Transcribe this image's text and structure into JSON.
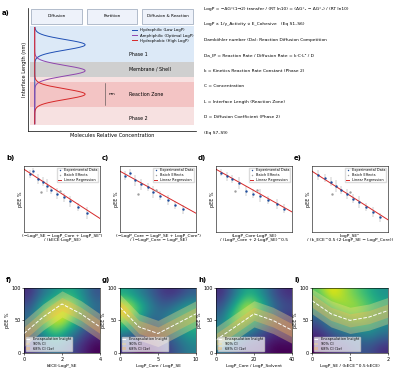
{
  "diagram": {
    "panel": "a)",
    "headers": [
      "Diffusion",
      "Partition",
      "Diffusion & Reaction"
    ],
    "y_label": "Interface Length (nm)",
    "x_label": "Molecules Relative Concentration",
    "regions": [
      "Phase 1",
      "Membrane / Shell",
      "Reaction Zone",
      "Phase 2"
    ],
    "nm_label": "nm",
    "species": [
      {
        "name": "Hydrophilic (Low LogP)",
        "color": "#1f4fb4"
      },
      {
        "name": "Amphiphilic (Optimal LogP)",
        "color": "#8e44ad"
      },
      {
        "name": "Hydrophobic (High LogP)",
        "color": "#d62728"
      }
    ],
    "equations": [
      "LogP = −ΔG°(1→2) transfer / (RT ln10) = (ΔG°₂ − ΔG°₁) / (RT ln10)",
      "LogP ∝ 1/γ_Activity ∝ E_Cohesive   (Eq S1–S6)",
      "Damköhler number (Da): Reaction Diffusion Competition",
      "Da_IP = Reaction Rate / Diffusion Rate = k·C·L² / D",
      "k = Kinetics Reaction Rate Constant (Phase 2)",
      "C = Concentration",
      "L = Interface Length (Reaction Zone)",
      "D = Diffusion Coefficient (Phase 2)",
      "(Eq S7–S9)"
    ]
  },
  "chart_data": [
    {
      "panel": "b)",
      "type": "scatter",
      "x_label": "(−LogP_SE − LogP_Core + LogP_SE²)\n/ (kECE·LogP_SE)",
      "y_label": "pEE %",
      "xlim": [
        0,
        10
      ],
      "ylim": [
        0,
        100
      ],
      "tick_labels": false,
      "legend": "upper right",
      "series": [
        {
          "name": "Experimental Data",
          "type": "scatter",
          "color": "#1f4e9e",
          "marker": "o",
          "x": [
            0.8,
            1.2,
            1.8,
            2.5,
            3.0,
            3.6,
            4.4,
            5.2,
            6.0,
            7.1,
            8.3
          ],
          "values": [
            88,
            92,
            80,
            76,
            70,
            64,
            58,
            52,
            46,
            38,
            28
          ],
          "errors": [
            6,
            5,
            8,
            7,
            10,
            6,
            9,
            7,
            8,
            6,
            9
          ]
        },
        {
          "name": "Batch Effects",
          "type": "scatter",
          "color": "#9e9e9e",
          "marker": "o",
          "x": [
            2.2,
            4.8
          ],
          "values": [
            60,
            62
          ]
        },
        {
          "name": "Linear Regression",
          "type": "line",
          "color": "#d62728",
          "line_style": "solid",
          "x": [
            0,
            10
          ],
          "values": [
            95,
            20
          ]
        }
      ]
    },
    {
      "panel": "c)",
      "type": "scatter",
      "x_label": "(−LogP_Core − LogP_SE + LogP_Core²)\n/ (−LogP_Core − LogP_SE)",
      "y_label": "pEE %",
      "xlim": [
        0,
        8
      ],
      "ylim": [
        0,
        100
      ],
      "tick_labels": false,
      "legend": "upper right",
      "series": [
        {
          "name": "Experimental Data",
          "type": "scatter",
          "color": "#1f4e9e",
          "marker": "o",
          "x": [
            0.5,
            1.0,
            1.6,
            2.2,
            2.9,
            3.5,
            4.2,
            5.0,
            5.8,
            6.6
          ],
          "values": [
            85,
            90,
            78,
            72,
            68,
            60,
            55,
            48,
            40,
            34
          ],
          "errors": [
            7,
            6,
            9,
            8,
            6,
            9,
            7,
            8,
            6,
            7
          ]
        },
        {
          "name": "Batch Effects",
          "type": "scatter",
          "color": "#9e9e9e",
          "marker": "o",
          "x": [
            1.9,
            3.8
          ],
          "values": [
            58,
            64
          ]
        },
        {
          "name": "Linear Regression",
          "type": "line",
          "color": "#d62728",
          "line_style": "solid",
          "x": [
            0,
            8
          ],
          "values": [
            92,
            28
          ]
        }
      ]
    },
    {
      "panel": "d)",
      "type": "scatter",
      "x_label": "(LogP_Core·LogP_SE)\n/ (LogP_Core + 2·LogP_SE)^0.5",
      "y_label": "pEE %",
      "xlim": [
        0,
        6
      ],
      "ylim": [
        0,
        100
      ],
      "tick_labels": false,
      "legend": "upper right",
      "series": [
        {
          "name": "Experimental Data",
          "type": "scatter",
          "color": "#1f4e9e",
          "marker": "o",
          "x": [
            0.4,
            0.9,
            1.3,
            1.8,
            2.4,
            2.9,
            3.5,
            4.1,
            4.8,
            5.4
          ],
          "values": [
            90,
            84,
            80,
            74,
            62,
            58,
            55,
            48,
            42,
            35
          ],
          "errors": [
            5,
            7,
            6,
            9,
            8,
            7,
            10,
            6,
            8,
            7
          ]
        },
        {
          "name": "Batch Effects",
          "type": "scatter",
          "color": "#9e9e9e",
          "marker": "o",
          "x": [
            1.5,
            3.2
          ],
          "values": [
            62,
            64
          ]
        },
        {
          "name": "Linear Regression",
          "type": "line",
          "color": "#d62728",
          "line_style": "solid",
          "x": [
            0,
            6
          ],
          "values": [
            95,
            30
          ]
        }
      ]
    },
    {
      "panel": "e)",
      "type": "scatter",
      "x_label": "LogP_SE²\n/ (k_ECE^0.5·(2·LogP_SE − LogP_Core))",
      "y_label": "pEE %",
      "xlim": [
        0,
        12
      ],
      "ylim": [
        0,
        100
      ],
      "tick_labels": false,
      "legend": "upper right",
      "series": [
        {
          "name": "Experimental Data",
          "type": "scatter",
          "color": "#1f4e9e",
          "marker": "o",
          "x": [
            1,
            2,
            3,
            3.8,
            4.6,
            5.5,
            6.5,
            7.4,
            8.5,
            9.6,
            10.8
          ],
          "values": [
            86,
            82,
            76,
            70,
            63,
            57,
            50,
            45,
            38,
            30,
            22
          ],
          "errors": [
            8,
            6,
            7,
            9,
            6,
            8,
            7,
            9,
            6,
            8,
            7
          ]
        },
        {
          "name": "Batch Effects",
          "type": "scatter",
          "color": "#9e9e9e",
          "marker": "o",
          "x": [
            3.2,
            6.0
          ],
          "values": [
            58,
            60
          ]
        },
        {
          "name": "Linear Regression",
          "type": "line",
          "color": "#d62728",
          "line_style": "solid",
          "x": [
            0,
            12
          ],
          "values": [
            92,
            18
          ]
        }
      ]
    },
    {
      "panel": "f)",
      "type": "heatmap",
      "x_label": "kECE·LogP_SE",
      "y_label": "pEE %",
      "xlim": [
        0,
        4
      ],
      "ylim": [
        0,
        100
      ],
      "xticks": [
        0,
        2,
        4
      ],
      "yticks": [
        0,
        50,
        100
      ],
      "legend": "lower left",
      "cells": [
        [
          0.2,
          0.3,
          0.4,
          0.3,
          0.2,
          0.1
        ],
        [
          0.3,
          0.5,
          0.7,
          0.5,
          0.3,
          0.2
        ],
        [
          0.4,
          0.7,
          0.9,
          0.8,
          0.5,
          0.3
        ],
        [
          0.3,
          0.6,
          0.8,
          0.9,
          0.6,
          0.4
        ],
        [
          0.2,
          0.4,
          0.5,
          0.6,
          0.5,
          0.3
        ]
      ],
      "series": [
        {
          "name": "Encapsulation Insight",
          "type": "line",
          "color": "#ffffff",
          "line_style": "dashed",
          "x": [
            0,
            1,
            2,
            3,
            4
          ],
          "values": [
            30,
            55,
            75,
            60,
            40
          ]
        },
        {
          "name": "90% CI",
          "type": "area",
          "color": "#ffe082",
          "x": [
            0,
            1,
            2,
            3,
            4
          ],
          "lower": [
            10,
            35,
            55,
            40,
            20
          ],
          "upper": [
            50,
            75,
            95,
            80,
            60
          ]
        },
        {
          "name": "68% CI (1σ)",
          "type": "area",
          "color": "#ffb74d",
          "x": [
            0,
            1,
            2,
            3,
            4
          ],
          "lower": [
            20,
            45,
            65,
            50,
            30
          ],
          "upper": [
            40,
            65,
            85,
            70,
            50
          ]
        }
      ]
    },
    {
      "panel": "g)",
      "type": "heatmap",
      "x_label": "LogP_Core / LogP_SE",
      "y_label": "pEE %",
      "xlim": [
        0,
        10
      ],
      "ylim": [
        0,
        100
      ],
      "xticks": [
        0,
        5,
        10
      ],
      "yticks": [
        0,
        50,
        100
      ],
      "legend": "lower left",
      "cells": [
        [
          0.3,
          0.2,
          0.2,
          0.3,
          0.4,
          0.5
        ],
        [
          0.5,
          0.4,
          0.3,
          0.4,
          0.5,
          0.6
        ],
        [
          0.8,
          0.6,
          0.4,
          0.5,
          0.6,
          0.7
        ],
        [
          0.9,
          0.7,
          0.5,
          0.4,
          0.5,
          0.6
        ],
        [
          0.6,
          0.5,
          0.4,
          0.3,
          0.3,
          0.4
        ]
      ],
      "series": [
        {
          "name": "Encapsulation Insight",
          "type": "line",
          "color": "#ffffff",
          "line_style": "dashed",
          "x": [
            0,
            2.5,
            5,
            7.5,
            10
          ],
          "values": [
            70,
            40,
            30,
            45,
            60
          ]
        },
        {
          "name": "90% CI",
          "type": "area",
          "color": "#ffe082",
          "x": [
            0,
            2.5,
            5,
            7.5,
            10
          ],
          "lower": [
            50,
            20,
            10,
            25,
            40
          ],
          "upper": [
            90,
            60,
            50,
            65,
            80
          ]
        },
        {
          "name": "68% CI (1σ)",
          "type": "area",
          "color": "#ffb74d",
          "x": [
            0,
            2.5,
            5,
            7.5,
            10
          ],
          "lower": [
            60,
            30,
            20,
            35,
            50
          ],
          "upper": [
            80,
            50,
            40,
            55,
            70
          ]
        }
      ]
    },
    {
      "panel": "h)",
      "type": "heatmap",
      "x_label": "LogP_Core / LogP_Solvent",
      "y_label": "pEE %",
      "xlim": [
        0,
        40
      ],
      "ylim": [
        0,
        100
      ],
      "xticks": [
        0,
        20,
        40
      ],
      "yticks": [
        0,
        50,
        100
      ],
      "legend": "lower left",
      "cells": [
        [
          0.4,
          0.3,
          0.2,
          0.2,
          0.1,
          0.1
        ],
        [
          0.5,
          0.6,
          0.4,
          0.3,
          0.2,
          0.2
        ],
        [
          0.4,
          0.8,
          0.7,
          0.5,
          0.3,
          0.2
        ],
        [
          0.3,
          0.6,
          0.9,
          0.7,
          0.4,
          0.3
        ],
        [
          0.2,
          0.4,
          0.6,
          0.5,
          0.3,
          0.2
        ]
      ],
      "series": [
        {
          "name": "Encapsulation Insight",
          "type": "line",
          "color": "#ffffff",
          "line_style": "dashed",
          "x": [
            0,
            10,
            20,
            30,
            40
          ],
          "values": [
            20,
            40,
            60,
            50,
            35
          ]
        },
        {
          "name": "90% CI",
          "type": "area",
          "color": "#ffe082",
          "x": [
            0,
            10,
            20,
            30,
            40
          ],
          "lower": [
            5,
            20,
            40,
            30,
            15
          ],
          "upper": [
            40,
            60,
            80,
            70,
            55
          ]
        },
        {
          "name": "68% CI (1σ)",
          "type": "area",
          "color": "#ffb74d",
          "x": [
            0,
            10,
            20,
            30,
            40
          ],
          "lower": [
            12,
            30,
            50,
            40,
            25
          ],
          "upper": [
            30,
            50,
            70,
            60,
            45
          ]
        }
      ]
    },
    {
      "panel": "i)",
      "type": "heatmap",
      "x_label": "LogP_SE / (kECE^0.5·kECE)",
      "y_label": "pEE %",
      "xlim": [
        0,
        2
      ],
      "ylim": [
        0,
        100
      ],
      "xticks": [
        0,
        1,
        2
      ],
      "yticks": [
        0,
        50,
        100
      ],
      "legend": "lower left",
      "cells": [
        [
          0.1,
          0.2,
          0.2,
          0.3,
          0.3,
          0.2
        ],
        [
          0.2,
          0.3,
          0.4,
          0.4,
          0.5,
          0.4
        ],
        [
          0.3,
          0.5,
          0.6,
          0.7,
          0.6,
          0.5
        ],
        [
          0.5,
          0.7,
          0.8,
          0.8,
          0.7,
          0.6
        ],
        [
          0.7,
          0.9,
          0.8,
          0.7,
          0.6,
          0.5
        ]
      ],
      "series": [
        {
          "name": "Encapsulation Insight",
          "type": "line",
          "color": "#ffffff",
          "line_style": "dashed",
          "x": [
            0,
            0.5,
            1,
            1.5,
            2
          ],
          "values": [
            80,
            60,
            50,
            55,
            65
          ]
        },
        {
          "name": "90% CI",
          "type": "area",
          "color": "#ffe082",
          "x": [
            0,
            0.5,
            1,
            1.5,
            2
          ],
          "lower": [
            60,
            40,
            30,
            35,
            45
          ],
          "upper": [
            98,
            80,
            70,
            75,
            85
          ]
        },
        {
          "name": "68% CI (1σ)",
          "type": "area",
          "color": "#ffb74d",
          "x": [
            0,
            0.5,
            1,
            1.5,
            2
          ],
          "lower": [
            70,
            50,
            40,
            45,
            55
          ],
          "upper": [
            90,
            70,
            60,
            65,
            75
          ]
        }
      ]
    }
  ]
}
